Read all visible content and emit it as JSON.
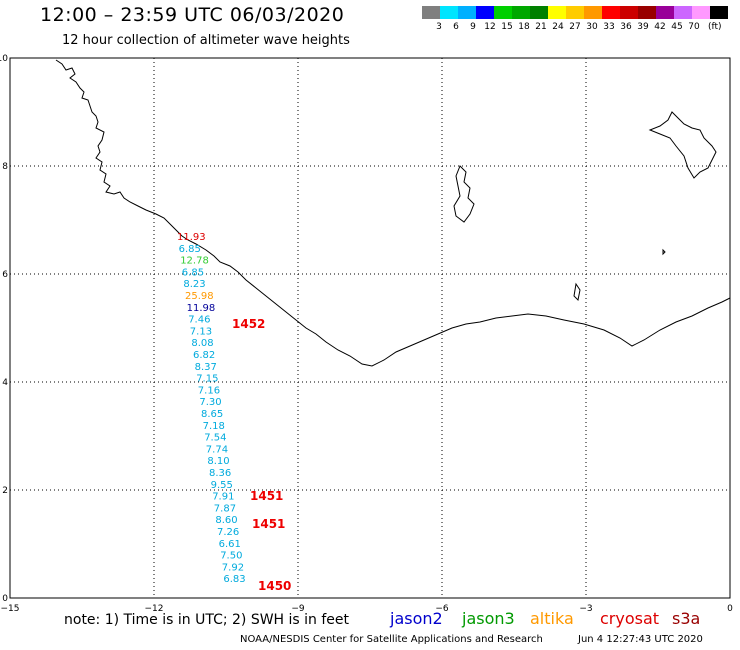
{
  "header": {
    "title": "12:00 – 23:59 UTC 06/03/2020",
    "subtitle": "12 hour collection of altimeter wave heights"
  },
  "colorbar": {
    "labels": [
      "3",
      "6",
      "9",
      "12",
      "15",
      "18",
      "21",
      "24",
      "27",
      "30",
      "33",
      "36",
      "39",
      "42",
      "45",
      "70"
    ],
    "unit": "(ft)",
    "colors": [
      "#7f7f7f",
      "#00e5ff",
      "#00b0ff",
      "#0000ff",
      "#00d000",
      "#00a800",
      "#008000",
      "#ffff00",
      "#ffcc00",
      "#ff9900",
      "#ff0000",
      "#cc0000",
      "#990000",
      "#990099",
      "#cc66ff",
      "#ff99ff",
      "#000000"
    ]
  },
  "axes": {
    "x_ticks": [
      "−15",
      "−12",
      "−9",
      "−6",
      "−3",
      "0"
    ],
    "y_ticks": [
      "0",
      "2",
      "4",
      "6",
      "8",
      "10"
    ]
  },
  "measurements": [
    {
      "v": "11.93",
      "c": "#dd0000"
    },
    {
      "v": "6.85",
      "c": "#00aadd"
    },
    {
      "v": "12.78",
      "c": "#33cc33"
    },
    {
      "v": "6.85",
      "c": "#00aadd"
    },
    {
      "v": "8.23",
      "c": "#00aadd"
    },
    {
      "v": "25.98",
      "c": "#ff9900"
    },
    {
      "v": "11.98",
      "c": "#000099"
    },
    {
      "v": "7.46",
      "c": "#00aadd"
    },
    {
      "v": "7.13",
      "c": "#00aadd"
    },
    {
      "v": "8.08",
      "c": "#00aadd"
    },
    {
      "v": "6.82",
      "c": "#00aadd"
    },
    {
      "v": "8.37",
      "c": "#00aadd"
    },
    {
      "v": "7.15",
      "c": "#00aadd"
    },
    {
      "v": "7.16",
      "c": "#00aadd"
    },
    {
      "v": "7.30",
      "c": "#00aadd"
    },
    {
      "v": "8.65",
      "c": "#00aadd"
    },
    {
      "v": "7.18",
      "c": "#00aadd"
    },
    {
      "v": "7.54",
      "c": "#00aadd"
    },
    {
      "v": "7.74",
      "c": "#00aadd"
    },
    {
      "v": "8.10",
      "c": "#00aadd"
    },
    {
      "v": "8.36",
      "c": "#00aadd"
    },
    {
      "v": "9.55",
      "c": "#00aadd"
    },
    {
      "v": "7.91",
      "c": "#00aadd"
    },
    {
      "v": "7.87",
      "c": "#00aadd"
    },
    {
      "v": "8.60",
      "c": "#00aadd"
    },
    {
      "v": "7.26",
      "c": "#00aadd"
    },
    {
      "v": "6.61",
      "c": "#00aadd"
    },
    {
      "v": "7.50",
      "c": "#00aadd"
    },
    {
      "v": "7.92",
      "c": "#00aadd"
    },
    {
      "v": "6.83",
      "c": "#00aadd"
    }
  ],
  "pass_times": [
    "1452",
    "1451",
    "1451",
    "1450"
  ],
  "note": "note: 1) Time is in UTC; 2) SWH is in feet",
  "legend": [
    {
      "name": "jason2",
      "color": "#0000cc"
    },
    {
      "name": "jason3",
      "color": "#009900"
    },
    {
      "name": "altika",
      "color": "#ff9900"
    },
    {
      "name": "cryosat",
      "color": "#dd0000"
    },
    {
      "name": "s3a",
      "color": "#990000"
    }
  ],
  "footer": {
    "agency": "NOAA/NESDIS Center for Satellite Applications and Research",
    "timestamp": "Jun  4 12:27:43 UTC 2020"
  }
}
